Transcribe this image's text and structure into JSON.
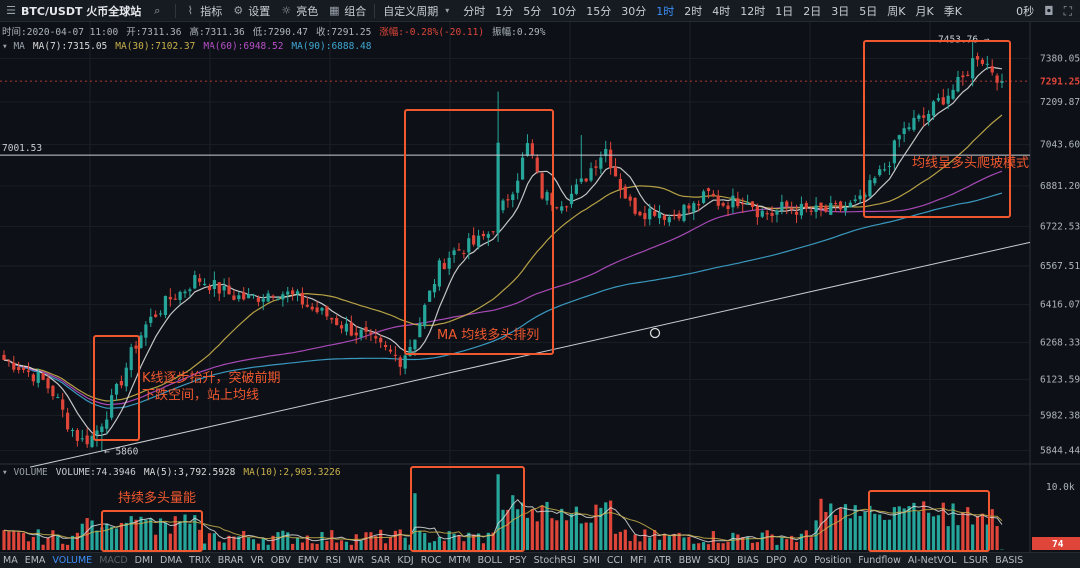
{
  "toolbar": {
    "symbol": "BTC/USDT 火币全球站",
    "indicators": "指标",
    "settings": "设置",
    "theme": "亮色",
    "layout": "组合",
    "custom_period": "自定义周期",
    "periods": [
      "分时",
      "1分",
      "5分",
      "10分",
      "15分",
      "30分",
      "1时",
      "2时",
      "4时",
      "12时",
      "1日",
      "2日",
      "3日",
      "5日",
      "周K",
      "月K",
      "季K"
    ],
    "active_period": "1时",
    "countdown": "0秒"
  },
  "ohlc": {
    "time": "时间:2020-04-07 11:00",
    "open": "开:7311.36",
    "high": "高:7311.36",
    "low": "低:7290.47",
    "close": "收:7291.25",
    "change": "涨幅:-0.28%(-20.11)",
    "amplitude": "振幅:0.29%"
  },
  "ma_legend": {
    "name": "MA",
    "ma7": "MA(7):7315.05",
    "ma30": "MA(30):7102.37",
    "ma60": "MA(60):6948.52",
    "ma90": "MA(90):6888.48"
  },
  "vol_legend": {
    "name": "VOLUME",
    "vol": "VOLUME:74.3946",
    "ma5": "MA(5):3,792.5928",
    "ma10": "MA(10):2,903.3226"
  },
  "colors": {
    "up": "#26a69a",
    "down": "#e0453a",
    "ma7": "#d9d9d9",
    "ma30": "#c9b04a",
    "ma60": "#b84fc7",
    "ma90": "#3fa6d0",
    "annotation": "#f0582f"
  },
  "chart_data": {
    "type": "candlestick",
    "price_axis_ticks": [
      "7380.05",
      "7209.87",
      "7043.60",
      "6881.20",
      "6722.53",
      "6567.51",
      "6416.07",
      "6268.33",
      "6123.59",
      "5982.38",
      "5844.44"
    ],
    "current_price": "7291.25",
    "horizontal_line_label": "7001.53",
    "high_marker": "7453.76",
    "low_marker": "5860",
    "volume_axis_ticks": [
      "10.0k"
    ],
    "current_volume": "74",
    "close_path": [
      6200,
      6180,
      6150,
      6120,
      6060,
      5950,
      5880,
      5900,
      5990,
      6100,
      6230,
      6330,
      6390,
      6440,
      6470,
      6520,
      6500,
      6470,
      6450,
      6440,
      6450,
      6470,
      6460,
      6440,
      6400,
      6380,
      6350,
      6320,
      6300,
      6260,
      6230,
      6200,
      6280,
      6420,
      6560,
      6620,
      6640,
      6660,
      6700,
      6800,
      6900,
      7050,
      6850,
      6820,
      6830,
      6880,
      6960,
      7030,
      6900,
      6800,
      6780,
      6790,
      6760,
      6790,
      6800,
      6850,
      6810,
      6820,
      6840,
      6780,
      6770,
      6800,
      6790,
      6780,
      6780,
      6790,
      6800,
      6820,
      6900,
      6960,
      7080,
      7130,
      7150,
      7210,
      7250,
      7300,
      7400,
      7350,
      7291
    ]
  },
  "annotations": {
    "a1_line1": "K线逐步抬升，突破前期",
    "a1_line2": "下跌空间，站上均线",
    "a2": "MA 均线多头排列",
    "a3": "均线呈多头爬坡模式",
    "a4": "持续多头量能"
  },
  "indicator_bar": [
    "MA",
    "EMA",
    "VOLUME",
    "MACD",
    "DMI",
    "DMA",
    "TRIX",
    "BRAR",
    "VR",
    "OBV",
    "EMV",
    "RSI",
    "WR",
    "SAR",
    "KDJ",
    "ROC",
    "MTM",
    "BOLL",
    "PSY",
    "StochRSI",
    "SMI",
    "CCI",
    "MFI",
    "ATR",
    "BBW",
    "SKDJ",
    "BIAS",
    "DPO",
    "AO",
    "Position",
    "Fundflow",
    "AI-NetVOL",
    "LSUR",
    "BASIS"
  ],
  "indicator_active": "VOLUME",
  "indicator_dim": "MACD"
}
